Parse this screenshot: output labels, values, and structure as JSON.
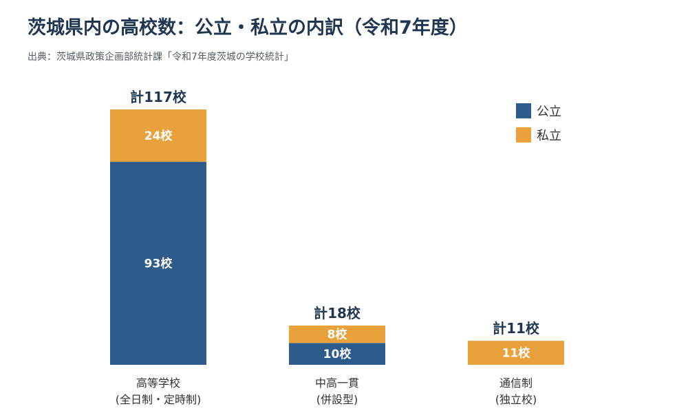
{
  "title": "茨城県内の高校数：公立・私立の内訳（令和7年度）",
  "source": "出典：茨城県政策企画部統計課「令和7年度茨城の学校統計」",
  "colors": {
    "public": "#2e5c8a",
    "private": "#e9a23b"
  },
  "chart_data": {
    "type": "bar",
    "stacked": true,
    "categories": [
      [
        "高等学校",
        "(全日制・定時制)"
      ],
      [
        "中高一貫",
        "(併設型)"
      ],
      [
        "通信制",
        "(独立校)"
      ]
    ],
    "series": [
      {
        "name": "公立",
        "values": [
          93,
          10,
          0
        ],
        "labels": [
          "93校",
          "10校",
          ""
        ]
      },
      {
        "name": "私立",
        "values": [
          24,
          8,
          11
        ],
        "labels": [
          "24校",
          "8校",
          "11校"
        ]
      }
    ],
    "totals": [
      117,
      18,
      11
    ],
    "total_labels": [
      "計117校",
      "計18校",
      "計11校"
    ],
    "ylim": [
      0,
      117
    ],
    "grid": false,
    "legend": "top-right"
  }
}
